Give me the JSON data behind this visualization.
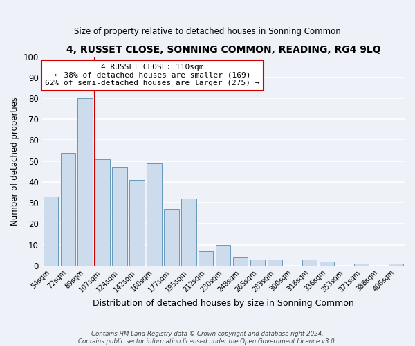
{
  "title": "4, RUSSET CLOSE, SONNING COMMON, READING, RG4 9LQ",
  "subtitle": "Size of property relative to detached houses in Sonning Common",
  "xlabel": "Distribution of detached houses by size in Sonning Common",
  "ylabel": "Number of detached properties",
  "bar_color": "#ccdcec",
  "bar_edge_color": "#6699bb",
  "bg_color": "#eef2f8",
  "grid_color": "#ffffff",
  "categories": [
    "54sqm",
    "72sqm",
    "89sqm",
    "107sqm",
    "124sqm",
    "142sqm",
    "160sqm",
    "177sqm",
    "195sqm",
    "212sqm",
    "230sqm",
    "248sqm",
    "265sqm",
    "283sqm",
    "300sqm",
    "318sqm",
    "336sqm",
    "353sqm",
    "371sqm",
    "388sqm",
    "406sqm"
  ],
  "values": [
    33,
    54,
    80,
    51,
    47,
    41,
    49,
    27,
    32,
    7,
    10,
    4,
    3,
    3,
    0,
    3,
    2,
    0,
    1,
    0,
    1
  ],
  "ylim": [
    0,
    100
  ],
  "yticks": [
    0,
    10,
    20,
    30,
    40,
    50,
    60,
    70,
    80,
    90,
    100
  ],
  "vline_index": 3,
  "annotation_title": "4 RUSSET CLOSE: 110sqm",
  "annotation_line1": "← 38% of detached houses are smaller (169)",
  "annotation_line2": "62% of semi-detached houses are larger (275) →",
  "annotation_box_color": "#ffffff",
  "annotation_box_edge": "#cc0000",
  "vline_color": "#cc0000",
  "footer1": "Contains HM Land Registry data © Crown copyright and database right 2024.",
  "footer2": "Contains public sector information licensed under the Open Government Licence v3.0."
}
